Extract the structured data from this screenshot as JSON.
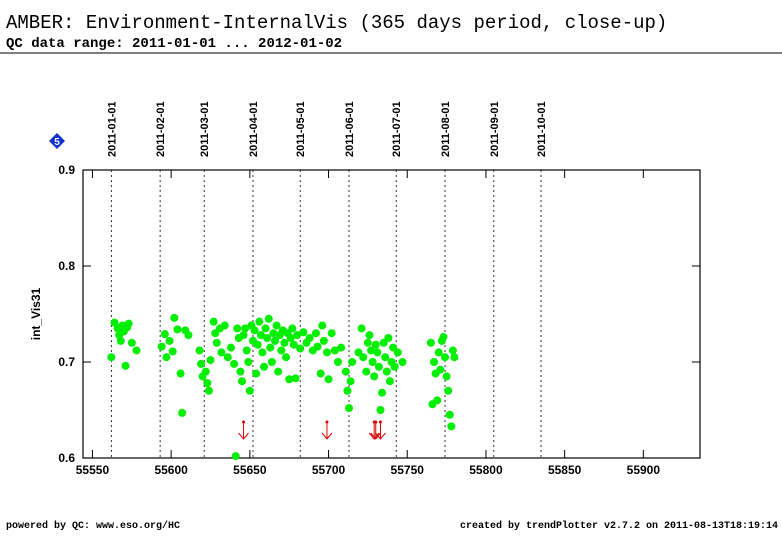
{
  "chart_data": {
    "type": "scatter",
    "title": "AMBER: Environment-InternalVis (365 days period, close-up)",
    "subtitle": "QC data range: 2011-01-01 ... 2012-01-02",
    "y_label": "int_Vis31",
    "badge": "5",
    "footer_left": "powered by QC: www.eso.org/HC",
    "footer_right": "created by trendPlotter v2.7.2 on 2011-08-13T18:19:14",
    "color": "#00ee00",
    "below_range_color": "#dd0000",
    "xlim": [
      55544,
      55936
    ],
    "ylim": [
      0.6,
      0.9
    ],
    "xticks": [
      55550,
      55600,
      55650,
      55700,
      55750,
      55800,
      55850,
      55900
    ],
    "yticks": [
      0.6,
      0.7,
      0.8,
      0.9
    ],
    "date_markers": [
      {
        "value": 55562,
        "label": "2011-01-01"
      },
      {
        "value": 55593,
        "label": "2011-02-01"
      },
      {
        "value": 55621,
        "label": "2011-03-01"
      },
      {
        "value": 55652,
        "label": "2011-04-01"
      },
      {
        "value": 55682,
        "label": "2011-05-01"
      },
      {
        "value": 55713,
        "label": "2011-06-01"
      },
      {
        "value": 55743,
        "label": "2011-07-01"
      },
      {
        "value": 55774,
        "label": "2011-08-01"
      },
      {
        "value": 55805,
        "label": "2011-09-01"
      },
      {
        "value": 55835,
        "label": "2011-10-01"
      }
    ],
    "below_range_x": [
      55646,
      55699,
      55729,
      55730,
      55733
    ],
    "x": [
      55562,
      55564,
      55566,
      55567,
      55568,
      55569,
      55570,
      55571,
      55572,
      55573,
      55575,
      55578,
      55594,
      55596,
      55597,
      55599,
      55601,
      55602,
      55604,
      55606,
      55607,
      55609,
      55611,
      55618,
      55619,
      55620,
      55622,
      55623,
      55624,
      55625,
      55627,
      55628,
      55629,
      55631,
      55632,
      55634,
      55636,
      55638,
      55640,
      55641,
      55642,
      55643,
      55644,
      55645,
      55646,
      55647,
      55648,
      55649,
      55650,
      55651,
      55652,
      55653,
      55654,
      55655,
      55656,
      55657,
      55658,
      55659,
      55660,
      55661,
      55662,
      55663,
      55664,
      55665,
      55666,
      55667,
      55668,
      55669,
      55670,
      55671,
      55672,
      55673,
      55674,
      55675,
      55676,
      55677,
      55678,
      55679,
      55680,
      55682,
      55684,
      55686,
      55688,
      55690,
      55692,
      55693,
      55695,
      55696,
      55697,
      55699,
      55700,
      55702,
      55704,
      55706,
      55708,
      55711,
      55712,
      55713,
      55714,
      55715,
      55719,
      55721,
      55722,
      55724,
      55725,
      55726,
      55727,
      55728,
      55729,
      55730,
      55731,
      55732,
      55733,
      55734,
      55735,
      55736,
      55737,
      55738,
      55739,
      55740,
      55741,
      55742,
      55744,
      55747,
      55765,
      55766,
      55767,
      55768,
      55769,
      55770,
      55771,
      55772,
      55773,
      55774,
      55775,
      55776,
      55777,
      55778,
      55779,
      55780
    ],
    "values": [
      0.705,
      0.741,
      0.735,
      0.728,
      0.722,
      0.738,
      0.732,
      0.696,
      0.736,
      0.74,
      0.72,
      0.712,
      0.716,
      0.729,
      0.705,
      0.722,
      0.711,
      0.746,
      0.734,
      0.688,
      0.647,
      0.733,
      0.728,
      0.712,
      0.698,
      0.685,
      0.69,
      0.678,
      0.67,
      0.702,
      0.742,
      0.73,
      0.72,
      0.735,
      0.71,
      0.738,
      0.705,
      0.715,
      0.698,
      0.602,
      0.735,
      0.725,
      0.69,
      0.68,
      0.728,
      0.735,
      0.712,
      0.7,
      0.67,
      0.738,
      0.722,
      0.733,
      0.688,
      0.718,
      0.742,
      0.728,
      0.71,
      0.695,
      0.735,
      0.725,
      0.745,
      0.715,
      0.7,
      0.73,
      0.722,
      0.738,
      0.69,
      0.728,
      0.712,
      0.733,
      0.72,
      0.705,
      0.73,
      0.682,
      0.725,
      0.735,
      0.718,
      0.683,
      0.728,
      0.714,
      0.731,
      0.72,
      0.725,
      0.712,
      0.73,
      0.716,
      0.688,
      0.738,
      0.722,
      0.71,
      0.682,
      0.73,
      0.712,
      0.7,
      0.715,
      0.69,
      0.67,
      0.652,
      0.68,
      0.7,
      0.71,
      0.735,
      0.705,
      0.69,
      0.72,
      0.728,
      0.712,
      0.7,
      0.685,
      0.718,
      0.71,
      0.695,
      0.65,
      0.668,
      0.72,
      0.705,
      0.69,
      0.725,
      0.68,
      0.7,
      0.715,
      0.695,
      0.71,
      0.7,
      0.72,
      0.656,
      0.7,
      0.688,
      0.66,
      0.71,
      0.692,
      0.722,
      0.726,
      0.705,
      0.685,
      0.67,
      0.645,
      0.633,
      0.712,
      0.705
    ]
  }
}
